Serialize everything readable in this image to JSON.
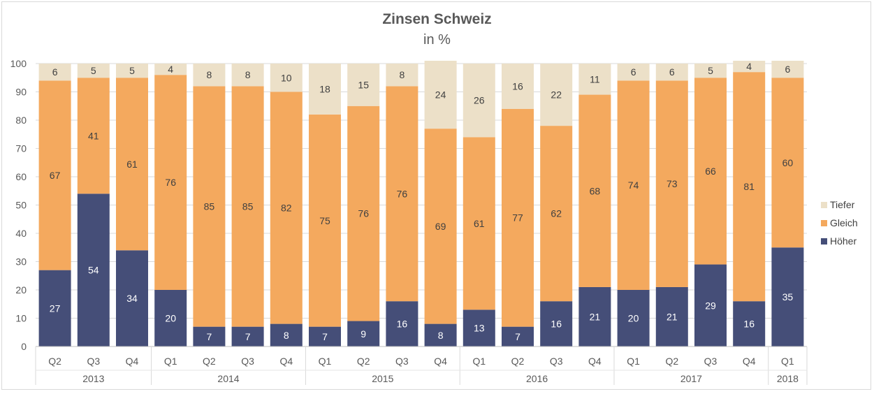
{
  "chart_data": {
    "type": "bar",
    "stacked": true,
    "title": "Zinsen Schweiz",
    "subtitle": "in %",
    "categories": [
      "Q2",
      "Q3",
      "Q4",
      "Q1",
      "Q2",
      "Q3",
      "Q4",
      "Q1",
      "Q2",
      "Q3",
      "Q4",
      "Q1",
      "Q2",
      "Q3",
      "Q4",
      "Q1",
      "Q2",
      "Q3",
      "Q4",
      "Q1"
    ],
    "year_groups": [
      {
        "label": "2013",
        "count": 3
      },
      {
        "label": "2014",
        "count": 4
      },
      {
        "label": "2015",
        "count": 4
      },
      {
        "label": "2016",
        "count": 4
      },
      {
        "label": "2017",
        "count": 4
      },
      {
        "label": "2018",
        "count": 1
      }
    ],
    "series": [
      {
        "name": "Höher",
        "color": "#454e78",
        "label_color": "#ffffff",
        "values": [
          27,
          54,
          34,
          20,
          7,
          7,
          8,
          7,
          9,
          16,
          8,
          13,
          7,
          16,
          21,
          20,
          21,
          29,
          16,
          35
        ]
      },
      {
        "name": "Gleich",
        "color": "#f4a95e",
        "label_color": "#404040",
        "values": [
          67,
          41,
          61,
          76,
          85,
          85,
          82,
          75,
          76,
          76,
          69,
          61,
          77,
          62,
          68,
          74,
          73,
          66,
          81,
          60
        ]
      },
      {
        "name": "Tiefer",
        "color": "#ece0c8",
        "label_color": "#404040",
        "values": [
          6,
          5,
          5,
          4,
          8,
          8,
          10,
          18,
          15,
          8,
          24,
          26,
          16,
          22,
          11,
          6,
          6,
          5,
          4,
          6
        ]
      }
    ],
    "ylim": [
      0,
      100
    ],
    "yticks": [
      0,
      10,
      20,
      30,
      40,
      50,
      60,
      70,
      80,
      90,
      100
    ],
    "grid": true,
    "legend_position": "right",
    "legend_order": [
      "Tiefer",
      "Gleich",
      "Höher"
    ]
  }
}
